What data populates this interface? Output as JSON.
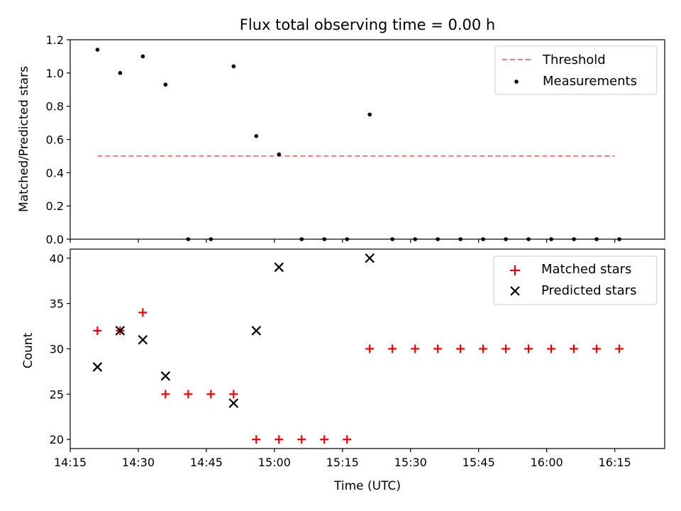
{
  "chart_data": [
    {
      "type": "scatter",
      "title": "Flux total observing time = 0.00 h",
      "xlabel": "",
      "ylabel": "Matched/Predicted stars",
      "ylim": [
        0,
        1.2
      ],
      "yticks": [
        "0.0",
        "0.2",
        "0.4",
        "0.6",
        "0.8",
        "1.0",
        "1.2"
      ],
      "x_minutes": [
        261,
        266,
        271,
        276,
        281,
        286,
        291,
        296,
        301,
        306,
        311,
        316,
        321,
        326,
        331,
        336,
        341,
        346,
        351,
        356,
        361,
        366,
        371,
        376
      ],
      "series": [
        {
          "name": "Measurements",
          "color": "#000000",
          "marker": "dot",
          "values": [
            1.14,
            1.0,
            1.1,
            0.93,
            0.0,
            0.0,
            1.04,
            0.62,
            0.51,
            0.0,
            0.0,
            0.0,
            0.75,
            0.0,
            0.0,
            0.0,
            0.0,
            0.0,
            0.0,
            0.0,
            0.0,
            0.0,
            0.0,
            0.0
          ]
        }
      ],
      "threshold": {
        "name": "Threshold",
        "value": 0.5,
        "x_range": [
          261,
          375
        ],
        "color": "#ff7777"
      },
      "legend": [
        "Threshold",
        "Measurements"
      ],
      "legend_position": "top-right"
    },
    {
      "type": "scatter",
      "title": "",
      "xlabel": "Time (UTC)",
      "ylabel": "Count",
      "ylim": [
        19,
        41
      ],
      "yticks": [
        "20",
        "25",
        "30",
        "35",
        "40"
      ],
      "xlim_minutes": [
        255,
        386
      ],
      "xticks": [
        "14:15",
        "14:30",
        "14:45",
        "15:00",
        "15:15",
        "15:30",
        "15:45",
        "16:00",
        "16:15"
      ],
      "x_minutes": [
        261,
        266,
        271,
        276,
        281,
        286,
        291,
        296,
        301,
        306,
        311,
        316,
        321,
        326,
        331,
        336,
        341,
        346,
        351,
        356,
        361,
        366,
        371,
        376
      ],
      "series": [
        {
          "name": "Matched stars",
          "color": "#ee0000",
          "marker": "plus",
          "values": [
            32,
            32,
            34,
            25,
            25,
            25,
            25,
            20,
            20,
            20,
            20,
            20,
            30,
            30,
            30,
            30,
            30,
            30,
            30,
            30,
            30,
            30,
            30,
            30
          ]
        },
        {
          "name": "Predicted stars",
          "color": "#000000",
          "marker": "x",
          "values": [
            28,
            32,
            31,
            27,
            null,
            null,
            24,
            32,
            39,
            null,
            null,
            null,
            40,
            null,
            null,
            null,
            null,
            null,
            null,
            null,
            null,
            null,
            null,
            null
          ]
        }
      ],
      "legend": [
        "Matched stars",
        "Predicted stars"
      ],
      "legend_position": "top-right"
    }
  ]
}
